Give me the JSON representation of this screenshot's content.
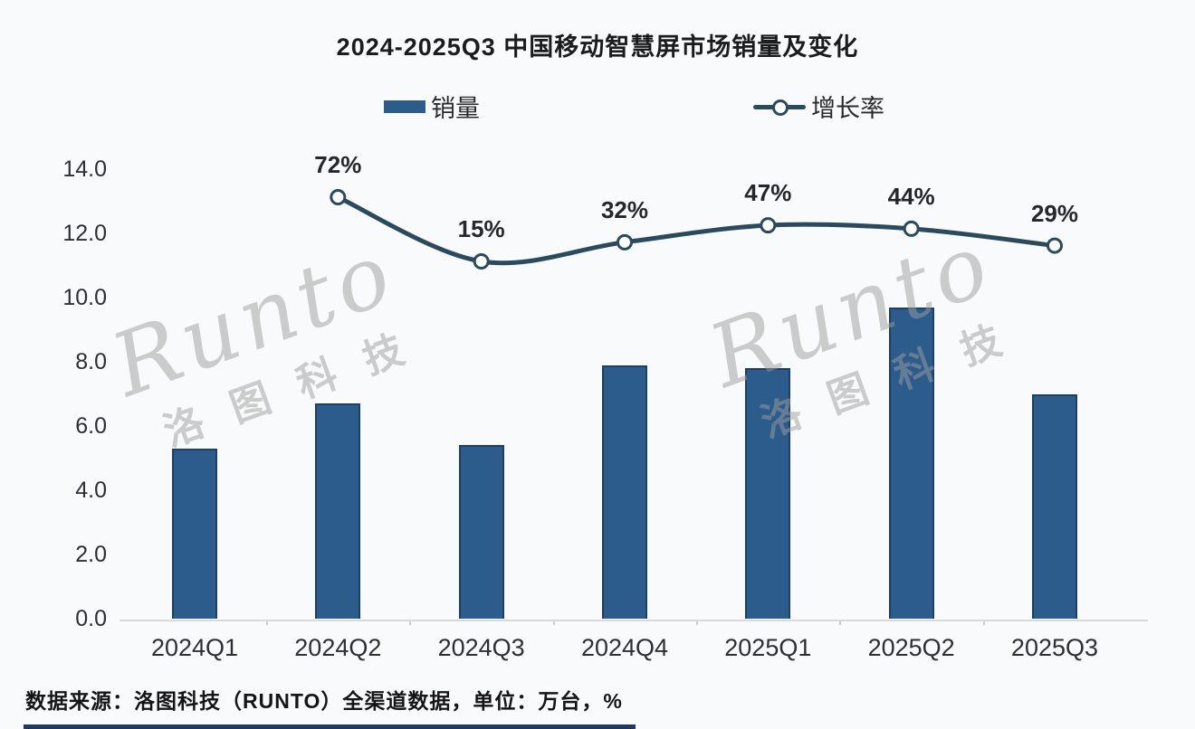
{
  "legend": {
    "items": [
      {
        "label": "销量",
        "type": "bar-swatch"
      },
      {
        "label": "增长率",
        "type": "line-swatch"
      }
    ]
  },
  "watermark": {
    "latin": "Runto",
    "cjk": "洛图科技"
  },
  "footer": {
    "source_note": "数据来源：洛图科技（RUNTO）全渠道数据，单位：万台，%"
  },
  "colors": {
    "background": "#f9fafb",
    "bar_fill": "#2b5c8c",
    "bar_border": "#1c4066",
    "line": "#2a4a5e",
    "marker_fill": "#ffffff",
    "axis_line": "#d9d9d9",
    "text": "#2e2e33",
    "watermark": "#9d9d9d",
    "bottom_strip": "#1f3864"
  },
  "chart_data": {
    "type": "bar",
    "combo": "bar+line",
    "title": "2024-2025Q3 中国移动智慧屏市场销量及变化",
    "categories": [
      "2024Q1",
      "2024Q2",
      "2024Q3",
      "2024Q4",
      "2025Q1",
      "2025Q2",
      "2025Q3"
    ],
    "series": [
      {
        "name": "销量",
        "chart_type": "bar",
        "unit": "万台",
        "axis": "left",
        "values": [
          5.3,
          6.7,
          5.4,
          7.9,
          7.8,
          9.7,
          7.0
        ],
        "color": "#2b5c8c"
      },
      {
        "name": "增长率",
        "chart_type": "line",
        "unit": "%",
        "axis": "secondary-hidden",
        "values": [
          null,
          72,
          15,
          32,
          47,
          44,
          29
        ],
        "point_labels": [
          "",
          "72%",
          "15%",
          "32%",
          "47%",
          "44%",
          "29%"
        ],
        "color": "#2a4a5e"
      }
    ],
    "xlabel": "",
    "ylabel": "",
    "ylim": [
      0,
      14
    ],
    "ytick_step": 2,
    "ytick_decimals": 1,
    "grid": false,
    "legend_position": "top"
  }
}
